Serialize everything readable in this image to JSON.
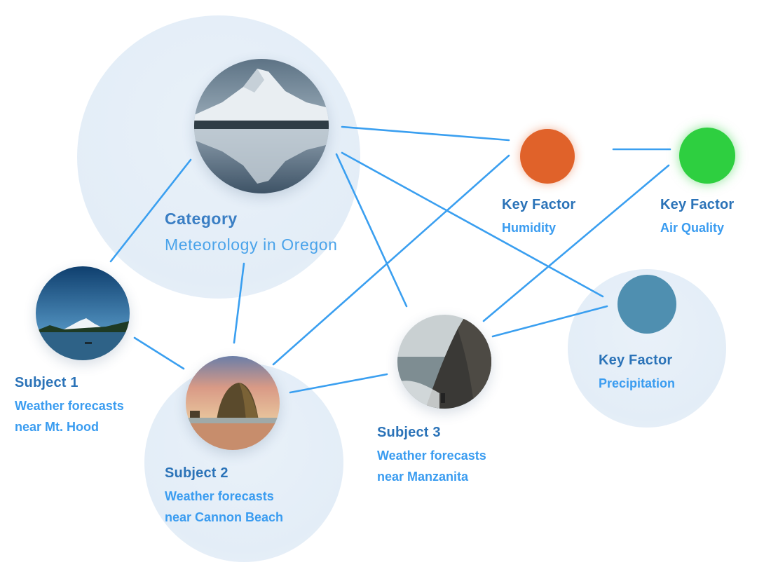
{
  "category": {
    "kind": "Category",
    "name": "Meteorology in Oregon"
  },
  "subjects": [
    {
      "kind": "Subject 1",
      "line1": "Weather forecasts",
      "line2": "near Mt. Hood"
    },
    {
      "kind": "Subject 2",
      "line1": "Weather forecasts",
      "line2": "near Cannon Beach"
    },
    {
      "kind": "Subject 3",
      "line1": "Weather forecasts",
      "line2": "near Manzanita"
    }
  ],
  "key_factors": [
    {
      "kind": "Key Factor",
      "name": "Humidity",
      "color": "#e0622a"
    },
    {
      "kind": "Key Factor",
      "name": "Air Quality",
      "color": "#2ecf40"
    },
    {
      "kind": "Key Factor",
      "name": "Precipitation",
      "color": "#4f8fb0"
    }
  ],
  "colors": {
    "link": "#3a9ff0",
    "bubble": "#e4edf7",
    "title": "#2b73b8",
    "subtitle": "#3a9cf0"
  }
}
